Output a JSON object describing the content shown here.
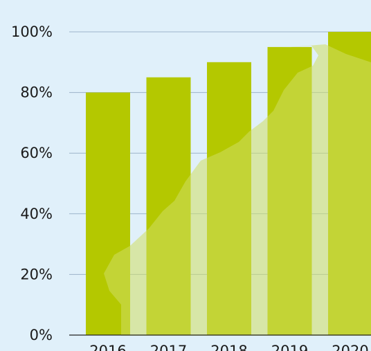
{
  "colors": {
    "background": "#e0f0fa",
    "bar": "#b4c800",
    "grid": "#9bb3c9",
    "map_overlay": "#cfdf63"
  },
  "chart_data": {
    "type": "bar",
    "title": "",
    "xlabel": "",
    "ylabel": "",
    "categories": [
      "2016",
      "2017",
      "2018",
      "2019",
      "2020"
    ],
    "values": [
      80,
      85,
      90,
      95,
      100
    ],
    "ylim": [
      0,
      100
    ],
    "yticks": [
      0,
      20,
      40,
      60,
      80,
      100
    ],
    "ytick_labels": [
      "0%",
      "20%",
      "40%",
      "60%",
      "80%",
      "100%"
    ],
    "grid": true,
    "legend": "none",
    "background_decoration": "map-of-netherlands"
  }
}
